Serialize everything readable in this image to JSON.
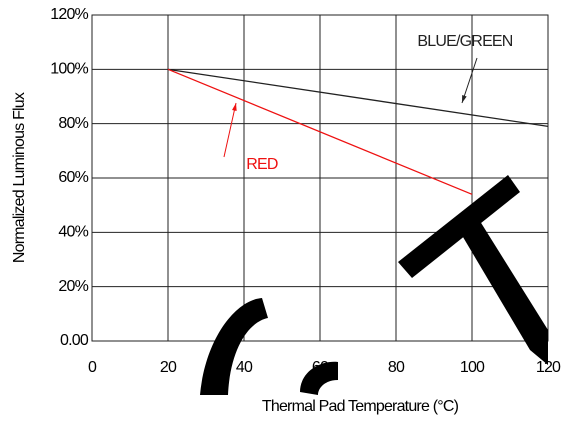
{
  "chart_data": {
    "type": "line",
    "xlabel": "Thermal Pad Temperature (°C)",
    "ylabel": "Normalized Luminous Flux",
    "x": [
      20,
      120
    ],
    "series": [
      {
        "name": "BLUE/GREEN",
        "color": "#222222",
        "x": [
          20,
          120
        ],
        "values": [
          100,
          79
        ]
      },
      {
        "name": "RED",
        "color": "#ee1111",
        "x": [
          20,
          100
        ],
        "values": [
          100,
          54
        ]
      }
    ],
    "xlim": [
      0,
      120
    ],
    "xticks": [
      0,
      20,
      40,
      60,
      80,
      100,
      120
    ],
    "ylim": [
      0,
      120
    ],
    "yticks": [
      {
        "value": 0,
        "label": "0.00"
      },
      {
        "value": 20,
        "label": "20%"
      },
      {
        "value": 40,
        "label": "40%"
      },
      {
        "value": 60,
        "label": "60%"
      },
      {
        "value": 80,
        "label": "80%"
      },
      {
        "value": 100,
        "label": "100%"
      },
      {
        "value": 120,
        "label": "120%"
      }
    ],
    "grid": true
  }
}
